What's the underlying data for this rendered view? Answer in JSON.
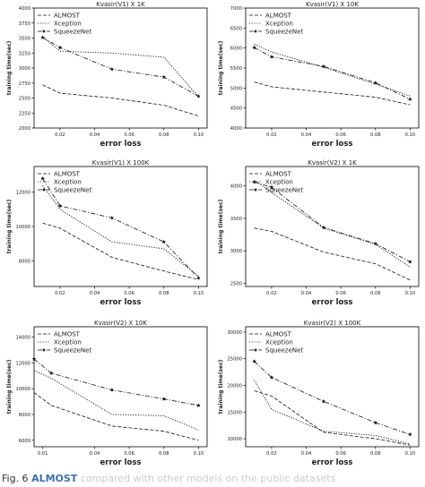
{
  "chart_data": [
    {
      "type": "line",
      "title": "Kvasir(V1) X 1K",
      "xlabel": "error loss",
      "ylabel": "training time(sec)",
      "x": [
        0.01,
        0.02,
        0.05,
        0.08,
        0.1
      ],
      "xticks": [
        "0.02",
        "0.04",
        "0.06",
        "0.08",
        "0.10"
      ],
      "yticks": [
        "2000",
        "2250",
        "2500",
        "2750",
        "3000",
        "3250",
        "3500",
        "3750",
        "4000"
      ],
      "ylim": [
        2000,
        4000
      ],
      "legend": "top-left",
      "series": [
        {
          "name": "ALMOST",
          "style": "dashed",
          "values": [
            2720,
            2580,
            2500,
            2380,
            2200
          ]
        },
        {
          "name": "Xception",
          "style": "dotted",
          "values": [
            3520,
            3280,
            3250,
            3180,
            2520
          ]
        },
        {
          "name": "SqueezeNet",
          "style": "dashdot-star",
          "values": [
            3510,
            3340,
            2980,
            2850,
            2530
          ]
        }
      ]
    },
    {
      "type": "line",
      "title": "Kvasir(V1) X 10K",
      "xlabel": "error loss",
      "ylabel": "training time(sec)",
      "x": [
        0.01,
        0.02,
        0.05,
        0.08,
        0.1
      ],
      "xticks": [
        "0.02",
        "0.04",
        "0.06",
        "0.08",
        "0.10"
      ],
      "yticks": [
        "4000",
        "4500",
        "5000",
        "5500",
        "6000",
        "6500",
        "7000"
      ],
      "ylim": [
        4000,
        7000
      ],
      "legend": "top-left",
      "series": [
        {
          "name": "ALMOST",
          "style": "dashed",
          "values": [
            5150,
            5030,
            4900,
            4770,
            4580
          ]
        },
        {
          "name": "Xception",
          "style": "dotted",
          "values": [
            6100,
            5900,
            5520,
            5100,
            4800
          ]
        },
        {
          "name": "SqueezeNet",
          "style": "dashdot-star",
          "values": [
            6010,
            5780,
            5540,
            5130,
            4720
          ]
        }
      ]
    },
    {
      "type": "line",
      "title": "Kvasir(V1) X 100K",
      "xlabel": "error loss",
      "ylabel": "training time(sec)",
      "x": [
        0.01,
        0.02,
        0.05,
        0.08,
        0.1
      ],
      "xticks": [
        "0.02",
        "0.04",
        "0.06",
        "0.08",
        "0.10"
      ],
      "yticks": [
        "6000",
        "8000",
        "10000",
        "12000"
      ],
      "ylim": [
        6500,
        13500
      ],
      "legend": "top-left",
      "series": [
        {
          "name": "ALMOST",
          "style": "dashed",
          "values": [
            10200,
            9900,
            8200,
            7400,
            6900
          ]
        },
        {
          "name": "Xception",
          "style": "dotted",
          "values": [
            12400,
            11000,
            9100,
            8700,
            7100
          ]
        },
        {
          "name": "SqueezeNet",
          "style": "dashdot-star",
          "values": [
            12800,
            11200,
            10500,
            9100,
            7000
          ]
        }
      ]
    },
    {
      "type": "line",
      "title": "Kvasir(V2) X 1K",
      "xlabel": "error loss",
      "ylabel": "training time(sec)",
      "x": [
        0.01,
        0.02,
        0.05,
        0.08,
        0.1
      ],
      "xticks": [
        "0.02",
        "0.04",
        "0.06",
        "0.08",
        "0.10"
      ],
      "yticks": [
        "2500",
        "3000",
        "3500",
        "4000"
      ],
      "ylim": [
        2450,
        4300
      ],
      "legend": "top-left",
      "series": [
        {
          "name": "ALMOST",
          "style": "dashed",
          "values": [
            3350,
            3300,
            2980,
            2800,
            2550
          ]
        },
        {
          "name": "Xception",
          "style": "dotted",
          "values": [
            4090,
            3900,
            3350,
            3100,
            2750
          ]
        },
        {
          "name": "SqueezeNet",
          "style": "dashdot-star",
          "values": [
            4060,
            3980,
            3360,
            3110,
            2830
          ]
        }
      ]
    },
    {
      "type": "line",
      "title": "Kvasir(V2) X 10K",
      "xlabel": "error loss",
      "ylabel": "training time(sec)",
      "x": [
        0.005,
        0.015,
        0.05,
        0.08,
        0.1
      ],
      "xticks": [
        "0.01",
        "0.04",
        "0.06",
        "0.08",
        "0.10"
      ],
      "yticks": [
        "6000",
        "8000",
        "10000",
        "12000",
        "14000"
      ],
      "ylim": [
        5500,
        14800
      ],
      "legend": "top-left",
      "series": [
        {
          "name": "ALMOST",
          "style": "dashed",
          "values": [
            9700,
            8700,
            7100,
            6700,
            6000
          ]
        },
        {
          "name": "Xception",
          "style": "dotted",
          "values": [
            11400,
            10800,
            8000,
            7900,
            6800
          ]
        },
        {
          "name": "SqueezeNet",
          "style": "dashdot-star",
          "values": [
            12300,
            11200,
            9900,
            9200,
            8700
          ]
        }
      ]
    },
    {
      "type": "line",
      "title": "Kvasir(V2) X 100K",
      "xlabel": "error loss",
      "ylabel": "training time(sec)",
      "x": [
        0.01,
        0.02,
        0.05,
        0.08,
        0.1
      ],
      "xticks": [
        "0.02",
        "0.04",
        "0.06",
        "0.08",
        "0.10"
      ],
      "yticks": [
        "10000",
        "15000",
        "20000",
        "25000",
        "30000"
      ],
      "ylim": [
        8500,
        31000
      ],
      "legend": "top-left",
      "series": [
        {
          "name": "ALMOST",
          "style": "dashed",
          "values": [
            19000,
            18000,
            11200,
            10000,
            8800
          ]
        },
        {
          "name": "Xception",
          "style": "dotted",
          "values": [
            21000,
            15500,
            11400,
            10600,
            9000
          ]
        },
        {
          "name": "SqueezeNet",
          "style": "dashdot-star",
          "values": [
            24500,
            21500,
            17000,
            13000,
            10800
          ]
        }
      ]
    }
  ],
  "caption": {
    "lead": "Fig. 6",
    "highlight": "ALMOST",
    "rest": "compared with other models on the public datasets"
  }
}
